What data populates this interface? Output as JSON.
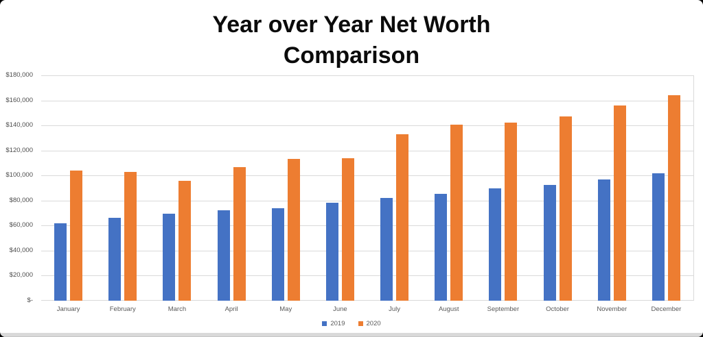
{
  "chart_data": {
    "type": "bar",
    "title": "Year over Year Net Worth Comparison",
    "title_line1": "Year over Year Net Worth",
    "title_line2": "Comparison",
    "categories": [
      "January",
      "February",
      "March",
      "April",
      "May",
      "June",
      "July",
      "August",
      "September",
      "October",
      "November",
      "December"
    ],
    "series": [
      {
        "name": "2019",
        "color": "#4472C4",
        "values": [
          62000,
          66000,
          69500,
          72500,
          74000,
          78000,
          82000,
          85500,
          89500,
          92500,
          97000,
          101500
        ]
      },
      {
        "name": "2020",
        "color": "#ED7D31",
        "values": [
          104000,
          103000,
          96000,
          106500,
          113000,
          114000,
          133000,
          140500,
          142500,
          147000,
          156000,
          164000
        ]
      }
    ],
    "y_axis": {
      "min": 0,
      "max": 180000,
      "step": 20000,
      "tick_labels_top_to_bottom": [
        "$180,000",
        "$160,000",
        "$140,000",
        "$120,000",
        "$100,000",
        "$80,000",
        "$60,000",
        "$40,000",
        "$20,000",
        "$-"
      ]
    },
    "legend": {
      "position": "bottom",
      "entries": [
        "2019",
        "2020"
      ]
    },
    "grid": true,
    "gridline_color": "#d9d9d9",
    "label_color": "#595959",
    "ylim": [
      0,
      180000
    ]
  }
}
